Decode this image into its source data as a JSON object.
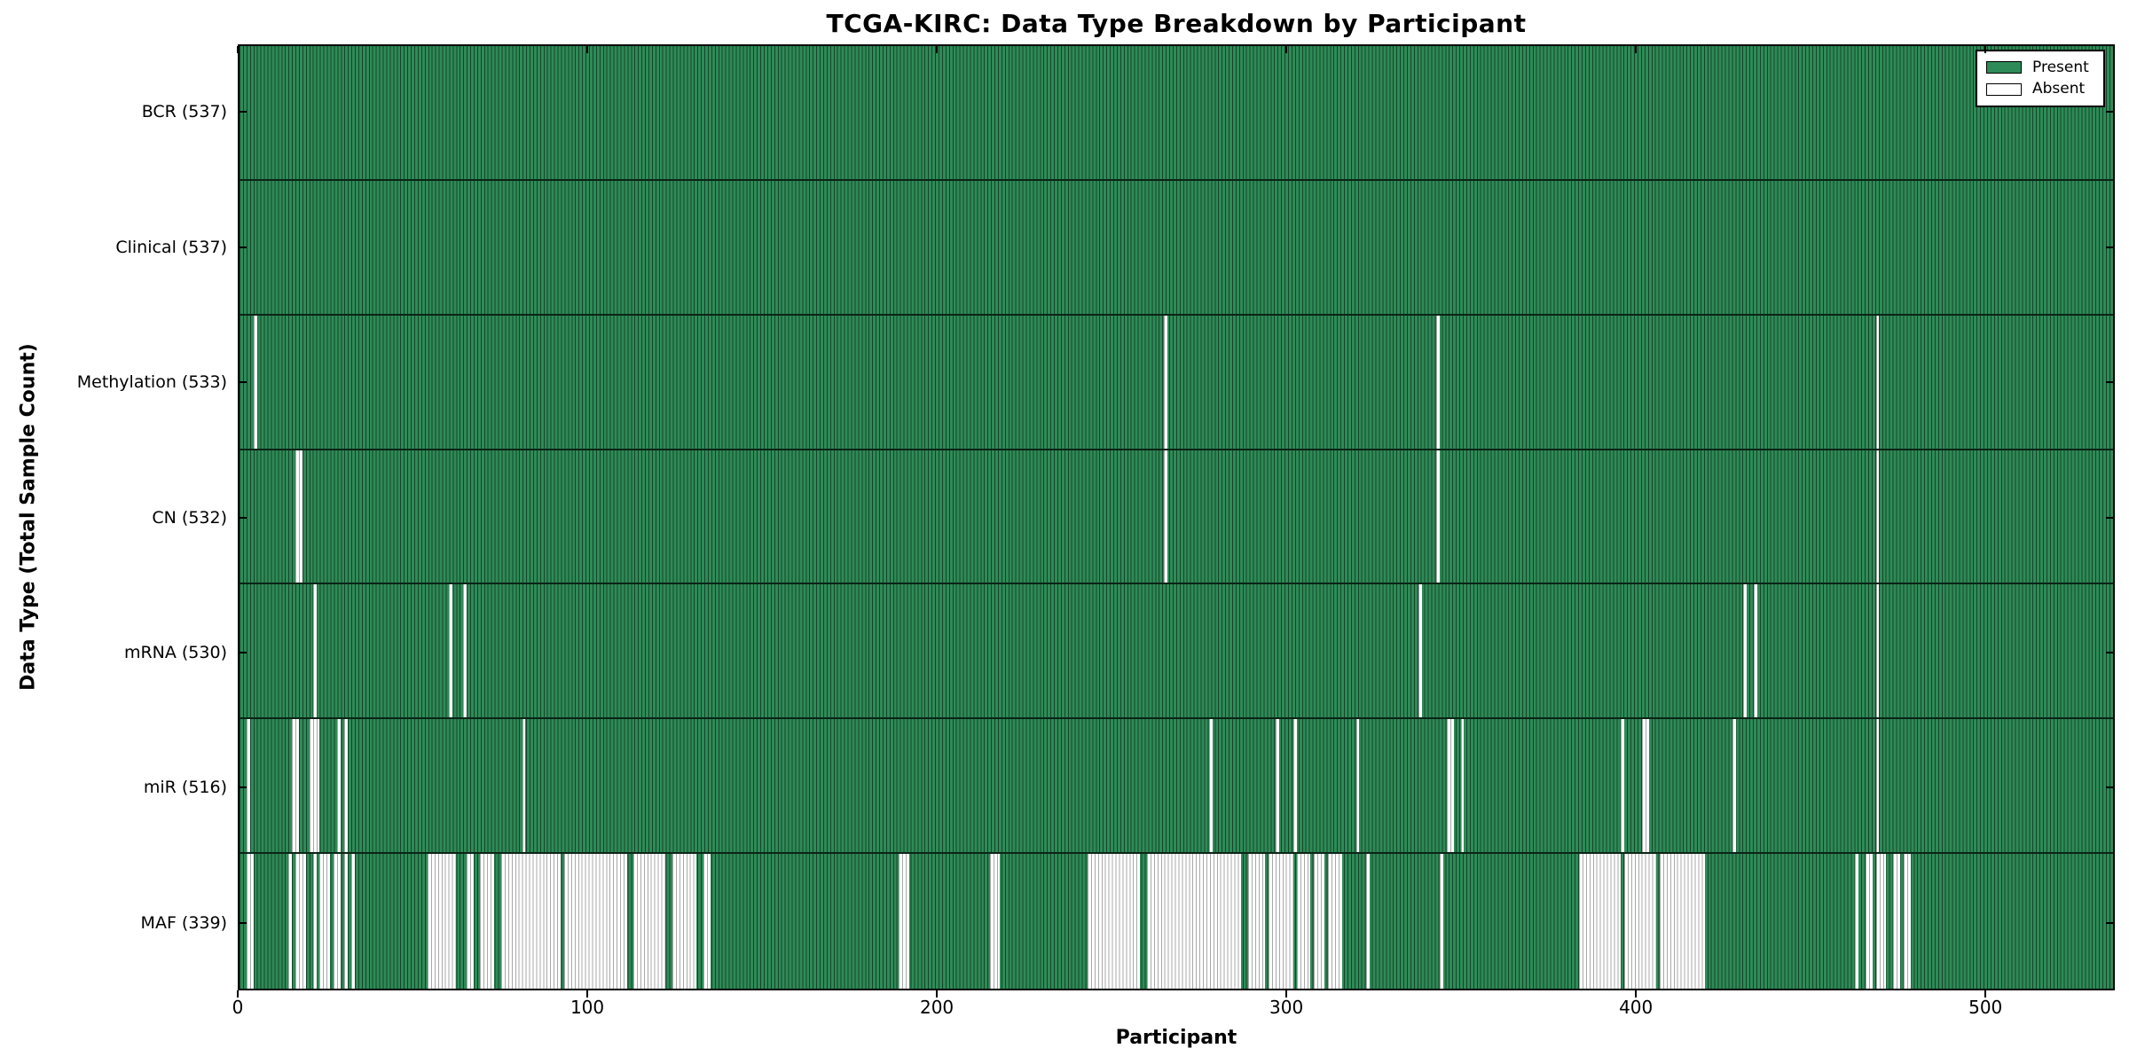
{
  "chart_data": {
    "type": "heatmap",
    "title": "TCGA-KIRC: Data Type Breakdown by Participant",
    "xlabel": "Participant",
    "ylabel": "Data Type (Total Sample Count)",
    "n_participants": 537,
    "x_ticks": [
      0,
      100,
      200,
      300,
      400,
      500
    ],
    "grid": false,
    "legend": {
      "position": "upper right",
      "items": [
        {
          "label": "Present",
          "color": "#2e8b57"
        },
        {
          "label": "Absent",
          "color": "#ffffff"
        }
      ]
    },
    "colors": {
      "present": "#2e8b57",
      "present_edge": "#154429",
      "absent": "#ffffff",
      "absent_edge": "#a8a8a8",
      "spine": "#000000"
    },
    "rows": [
      {
        "label": "BCR (537)",
        "data_type": "BCR",
        "present_count": 537,
        "absent_ranges": []
      },
      {
        "label": "Clinical (537)",
        "data_type": "Clinical",
        "present_count": 537,
        "absent_ranges": []
      },
      {
        "label": "Methylation (533)",
        "data_type": "Methylation",
        "present_count": 533,
        "absent_ranges": [
          [
            4,
            4
          ],
          [
            265,
            265
          ],
          [
            343,
            343
          ],
          [
            469,
            469
          ]
        ]
      },
      {
        "label": "CN (532)",
        "data_type": "CN",
        "present_count": 532,
        "absent_ranges": [
          [
            16,
            17
          ],
          [
            265,
            265
          ],
          [
            343,
            343
          ],
          [
            469,
            469
          ]
        ]
      },
      {
        "label": "mRNA (530)",
        "data_type": "mRNA",
        "present_count": 530,
        "absent_ranges": [
          [
            21,
            21
          ],
          [
            60,
            60
          ],
          [
            64,
            64
          ],
          [
            338,
            338
          ],
          [
            431,
            431
          ],
          [
            434,
            434
          ],
          [
            469,
            469
          ]
        ]
      },
      {
        "label": "miR (516)",
        "data_type": "miR",
        "present_count": 516,
        "absent_ranges": [
          [
            2,
            2
          ],
          [
            15,
            16
          ],
          [
            20,
            22
          ],
          [
            28,
            28
          ],
          [
            30,
            30
          ],
          [
            81,
            81
          ],
          [
            278,
            278
          ],
          [
            297,
            297
          ],
          [
            302,
            302
          ],
          [
            320,
            320
          ],
          [
            346,
            347
          ],
          [
            350,
            350
          ],
          [
            396,
            396
          ],
          [
            402,
            403
          ],
          [
            428,
            428
          ],
          [
            469,
            469
          ]
        ]
      },
      {
        "label": "MAF (339)",
        "data_type": "MAF",
        "present_count": 339,
        "absent_ranges": [
          [
            2,
            3
          ],
          [
            14,
            14
          ],
          [
            16,
            18
          ],
          [
            21,
            21
          ],
          [
            23,
            25
          ],
          [
            27,
            28
          ],
          [
            30,
            30
          ],
          [
            32,
            32
          ],
          [
            54,
            61
          ],
          [
            65,
            66
          ],
          [
            69,
            72
          ],
          [
            75,
            91
          ],
          [
            93,
            110
          ],
          [
            113,
            121
          ],
          [
            124,
            130
          ],
          [
            133,
            134
          ],
          [
            189,
            191
          ],
          [
            215,
            217
          ],
          [
            243,
            257
          ],
          [
            260,
            286
          ],
          [
            289,
            293
          ],
          [
            295,
            301
          ],
          [
            303,
            306
          ],
          [
            308,
            310
          ],
          [
            312,
            315
          ],
          [
            323,
            323
          ],
          [
            344,
            344
          ],
          [
            384,
            395
          ],
          [
            397,
            405
          ],
          [
            407,
            419
          ],
          [
            463,
            463
          ],
          [
            466,
            467
          ],
          [
            469,
            471
          ],
          [
            474,
            475
          ],
          [
            477,
            478
          ]
        ]
      }
    ]
  }
}
